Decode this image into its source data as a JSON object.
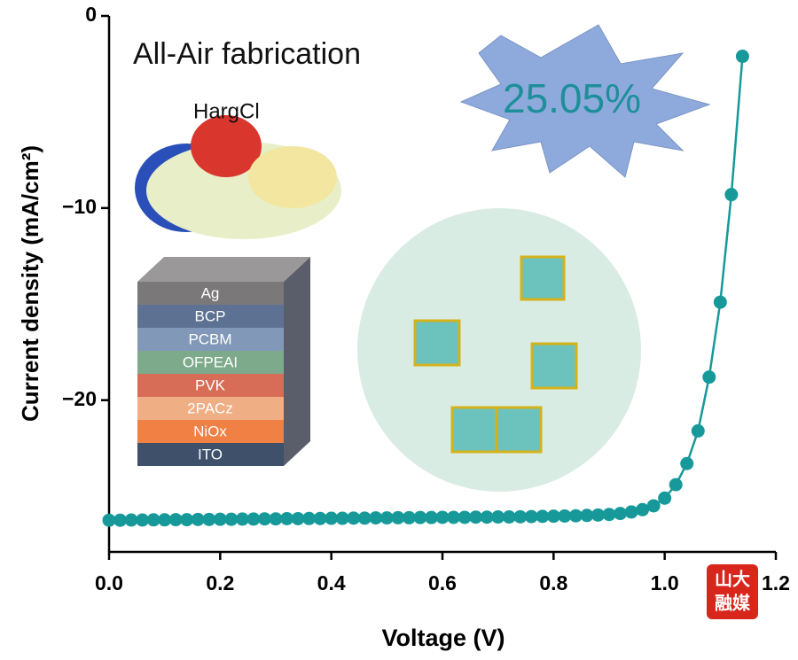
{
  "chart_data": {
    "type": "line",
    "x_label": "Voltage (V)",
    "y_label": "Current density (mA/cm²)",
    "x": [
      0,
      0.02,
      0.04,
      0.06,
      0.08,
      0.1,
      0.12,
      0.14,
      0.16,
      0.18,
      0.2,
      0.22,
      0.24,
      0.26,
      0.28,
      0.3,
      0.32,
      0.34,
      0.36,
      0.38,
      0.4,
      0.42,
      0.44,
      0.46,
      0.48,
      0.5,
      0.52,
      0.54,
      0.56,
      0.58,
      0.6,
      0.62,
      0.64,
      0.66,
      0.68,
      0.7,
      0.72,
      0.74,
      0.76,
      0.78,
      0.8,
      0.82,
      0.84,
      0.86,
      0.88,
      0.9,
      0.92,
      0.94,
      0.96,
      0.98,
      1.0,
      1.02,
      1.04,
      1.06,
      1.08,
      1.1,
      1.12,
      1.14
    ],
    "values": [
      -26.25,
      -26.25,
      -26.24,
      -26.24,
      -26.23,
      -26.23,
      -26.22,
      -26.22,
      -26.21,
      -26.21,
      -26.2,
      -26.2,
      -26.19,
      -26.19,
      -26.18,
      -26.18,
      -26.17,
      -26.17,
      -26.16,
      -26.16,
      -26.15,
      -26.15,
      -26.14,
      -26.14,
      -26.13,
      -26.13,
      -26.12,
      -26.12,
      -26.11,
      -26.11,
      -26.1,
      -26.1,
      -26.1,
      -26.09,
      -26.09,
      -26.08,
      -26.08,
      -26.07,
      -26.06,
      -26.05,
      -26.04,
      -26.03,
      -26.02,
      -26.0,
      -25.98,
      -25.95,
      -25.9,
      -25.82,
      -25.7,
      -25.5,
      -25.1,
      -24.4,
      -23.3,
      -21.6,
      -18.8,
      -14.9,
      -9.3,
      -2.1
    ],
    "color": "#17999a",
    "xlim": [
      0,
      1.2
    ],
    "xticks": [
      {
        "value": 0,
        "label": "0.0"
      },
      {
        "value": 0.2,
        "label": "0.2"
      },
      {
        "value": 0.4,
        "label": "0.4"
      },
      {
        "value": 0.6,
        "label": "0.6"
      },
      {
        "value": 0.8,
        "label": "0.8"
      },
      {
        "value": 1.0,
        "label": "1.0"
      },
      {
        "value": 1.2,
        "label": "1.2"
      }
    ],
    "ylim": [
      -27.9,
      0
    ],
    "yticks": [
      0,
      {
        "value": -10,
        "label": "−10"
      },
      {
        "value": -20,
        "label": "−20"
      }
    ],
    "annotations": {
      "fabrication": "All-Air fabrication",
      "molecule": "HargCl",
      "efficiency": "25.05%"
    },
    "layers": [
      {
        "name": "Ag",
        "color": "#7a7878"
      },
      {
        "name": "BCP",
        "color": "#5d7293"
      },
      {
        "name": "PCBM",
        "color": "#8298b8"
      },
      {
        "name": "OFPEAI",
        "color": "#7caa8b"
      },
      {
        "name": "PVK",
        "color": "#d86d57"
      },
      {
        "name": "2PACz",
        "color": "#efae84"
      },
      {
        "name": "NiOx",
        "color": "#f08043"
      },
      {
        "name": "ITO",
        "color": "#3f506a"
      }
    ],
    "watermark": [
      "山大",
      "融媒"
    ]
  }
}
